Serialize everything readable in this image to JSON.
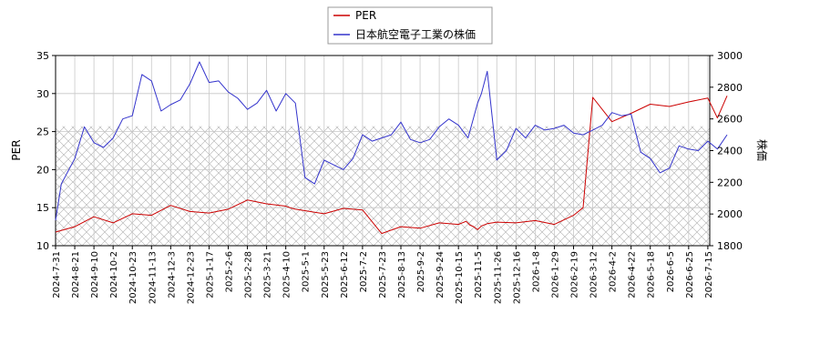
{
  "chart_data": {
    "type": "line",
    "legend": {
      "placement": "top-center",
      "entries": [
        {
          "name": "PER",
          "color": "#cc0000"
        },
        {
          "name": "日本航空電子工業の株価",
          "color": "#3333cc"
        }
      ]
    },
    "ylabel_left": "PER",
    "ylabel_right": "株価",
    "ylim_left": [
      10,
      35
    ],
    "ylim_right": [
      1800,
      3000
    ],
    "yticks_left": [
      10,
      15,
      20,
      25,
      30,
      35
    ],
    "yticks_right": [
      1800,
      2000,
      2200,
      2400,
      2600,
      2800,
      3000
    ],
    "xticks": [
      "2024-7-31",
      "2024-8-21",
      "2024-9-10",
      "2024-10-2",
      "2024-10-23",
      "2024-11-13",
      "2024-12-3",
      "2024-12-23",
      "2025-1-17",
      "2025-2-6",
      "2025-2-28",
      "2025-3-21",
      "2025-4-10",
      "2025-5-1",
      "2025-5-23",
      "2025-6-12",
      "2025-7-2",
      "2025-7-23",
      "2025-8-13",
      "2025-9-2",
      "2025-9-24",
      "2025-10-15",
      "2025-11-5",
      "2025-11-26",
      "2025-12-16",
      "2026-1-8",
      "2026-1-29",
      "2026-2-19",
      "2026-3-12",
      "2026-4-2",
      "2026-4-22",
      "2026-5-18",
      "2026-6-5",
      "2026-6-25",
      "2026-7-15"
    ],
    "grid": true,
    "hatched_band_left": [
      10,
      25.7
    ],
    "series": [
      {
        "name": "PER",
        "axis": "left",
        "color": "#cc0000",
        "x": [
          0,
          1,
          2,
          3,
          4,
          5,
          6,
          7,
          8,
          9,
          10,
          11,
          12,
          12.2,
          12.5,
          13,
          13.5,
          14,
          15,
          16,
          17,
          18,
          19,
          20,
          21,
          21.4,
          21.6,
          21.8,
          22,
          22.2,
          22.5,
          23,
          24,
          25,
          26,
          26.5,
          27,
          27.5,
          28,
          29,
          30,
          31,
          32,
          33,
          34,
          34.5,
          35
        ],
        "values": [
          11.8,
          12.5,
          13.8,
          13.0,
          14.2,
          14.0,
          15.3,
          14.5,
          14.3,
          14.8,
          16.0,
          15.5,
          15.2,
          15.0,
          14.8,
          14.6,
          14.4,
          14.2,
          14.9,
          14.7,
          11.6,
          12.5,
          12.3,
          13.0,
          12.8,
          13.2,
          12.7,
          12.5,
          12.1,
          12.6,
          12.9,
          13.1,
          13.0,
          13.3,
          12.8,
          13.4,
          14.0,
          15.0,
          29.5,
          26.3,
          27.4,
          28.6,
          28.3,
          28.9,
          29.4,
          26.8,
          29.7
        ]
      },
      {
        "name": "日本航空電子工業の株価",
        "axis": "right",
        "color": "#3333cc",
        "x": [
          0,
          0.3,
          1,
          1.5,
          2,
          2.5,
          3,
          3.5,
          4,
          4.5,
          5,
          5.5,
          6,
          6.5,
          7,
          7.5,
          8,
          8.5,
          9,
          9.5,
          10,
          10.5,
          11,
          11.5,
          12,
          12.5,
          13,
          13.5,
          14,
          14.5,
          15,
          15.5,
          16,
          16.5,
          17,
          17.5,
          18,
          18.5,
          19,
          19.5,
          20,
          20.5,
          21,
          21.5,
          22,
          22.2,
          22.5,
          23,
          23.5,
          24,
          24.5,
          25,
          25.5,
          26,
          26.5,
          27,
          27.5,
          28,
          28.5,
          29,
          29.5,
          30,
          30.5,
          31,
          31.5,
          32,
          32.5,
          33,
          33.5,
          34,
          34.5,
          35
        ],
        "values": [
          1960,
          2190,
          2350,
          2550,
          2450,
          2420,
          2480,
          2600,
          2620,
          2880,
          2840,
          2650,
          2690,
          2720,
          2820,
          2960,
          2830,
          2840,
          2770,
          2730,
          2660,
          2700,
          2780,
          2650,
          2760,
          2700,
          2230,
          2190,
          2340,
          2310,
          2280,
          2350,
          2500,
          2460,
          2480,
          2500,
          2580,
          2470,
          2450,
          2470,
          2550,
          2600,
          2560,
          2480,
          2700,
          2760,
          2900,
          2340,
          2400,
          2540,
          2480,
          2560,
          2530,
          2540,
          2560,
          2510,
          2500,
          2530,
          2560,
          2640,
          2620,
          2630,
          2390,
          2350,
          2260,
          2290,
          2430,
          2410,
          2400,
          2460,
          2410,
          2500
        ]
      }
    ]
  }
}
